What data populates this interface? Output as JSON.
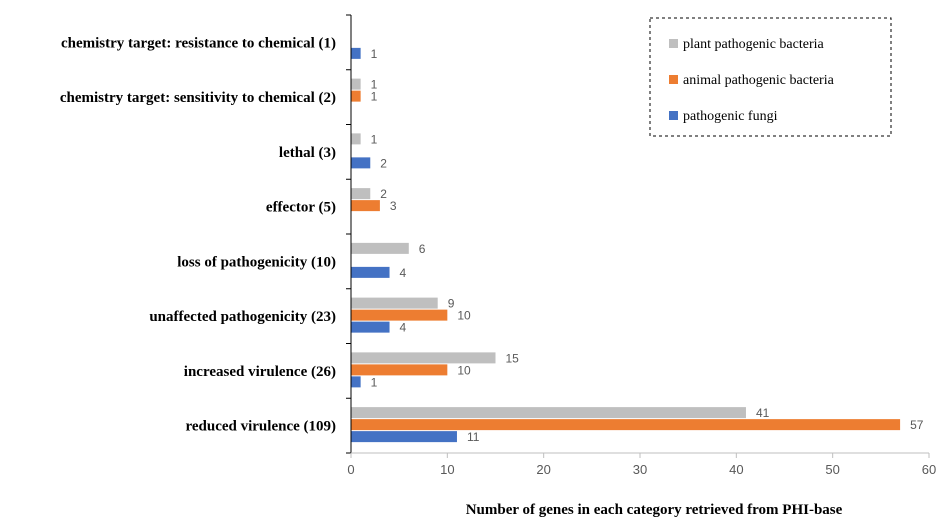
{
  "chart_data": {
    "type": "bar",
    "orientation": "horizontal",
    "categories": [
      "chemistry target: resistance to chemical (1)",
      "chemistry target: sensitivity to chemical (2)",
      "lethal (3)",
      "effector (5)",
      "loss of pathogenicity (10)",
      "unaffected pathogenicity (23)",
      "increased virulence (26)",
      "reduced virulence (109)"
    ],
    "series": [
      {
        "name": "plant pathogenic bacteria",
        "color": "#BFBFBF",
        "values": [
          null,
          1,
          1,
          2,
          6,
          9,
          15,
          41
        ]
      },
      {
        "name": "animal pathogenic bacteria",
        "color": "#ED7D31",
        "values": [
          null,
          1,
          null,
          3,
          null,
          10,
          10,
          57
        ]
      },
      {
        "name": "pathogenic fungi",
        "color": "#4472C4",
        "values": [
          1,
          null,
          2,
          null,
          4,
          4,
          1,
          11
        ]
      }
    ],
    "xlabel": "Number of genes in each category retrieved from PHI-base",
    "ylabel": "",
    "xlim": [
      0,
      60
    ],
    "xticks": [
      "0",
      "10",
      "20",
      "30",
      "40",
      "50",
      "60"
    ],
    "grid": false,
    "legend": {
      "position": "top-right",
      "border": "dashed"
    },
    "data_labels": true
  }
}
